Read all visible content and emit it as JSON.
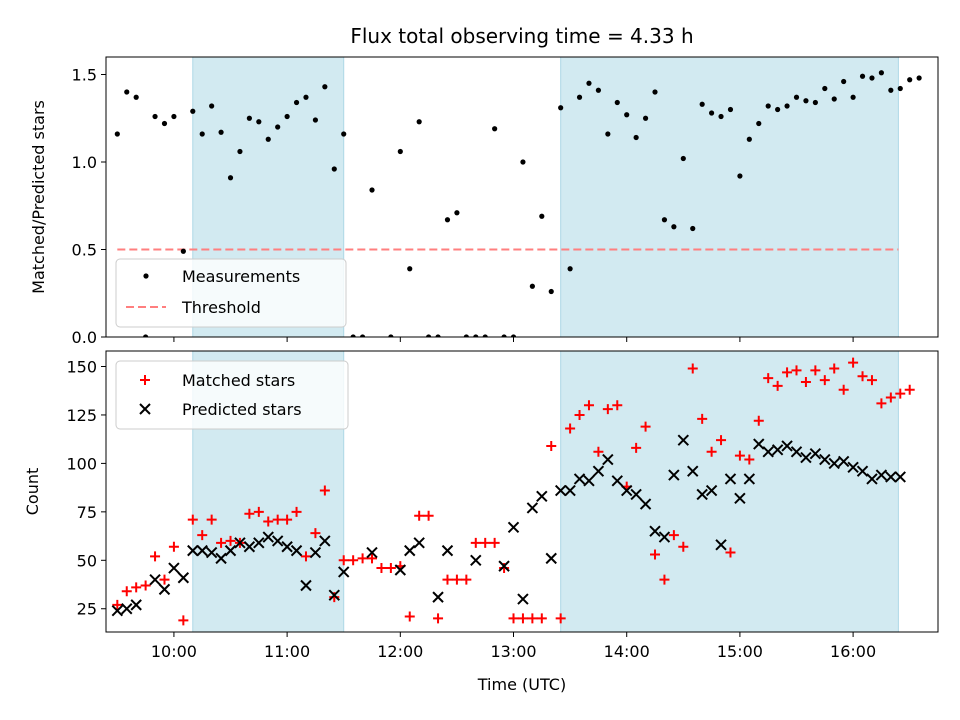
{
  "title": "Flux total observing time = 4.33 h",
  "xlabel": "Time (UTC)",
  "colors": {
    "measurement": "#000000",
    "threshold": "#ff7f7f",
    "band": "#add8e6",
    "matched": "#ff0000",
    "predicted": "#000000"
  },
  "chart_data": [
    {
      "type": "scatter",
      "ylabel": "Matched/Predicted stars",
      "xlim": [
        "09:24",
        "16:45"
      ],
      "ylim": [
        0,
        1.6
      ],
      "yticks": [
        0.0,
        0.5,
        1.0,
        1.5
      ],
      "ytick_labels": [
        "0.0",
        "0.5",
        "1.0",
        "1.5"
      ],
      "xticks": [
        "10:00",
        "11:00",
        "12:00",
        "13:00",
        "14:00",
        "15:00",
        "16:00"
      ],
      "legend_position": "lower-left",
      "legend": [
        "Measurements",
        "Threshold"
      ],
      "threshold": 0.5,
      "threshold_range": [
        "09:30",
        "16:24"
      ],
      "observing_bands": [
        [
          "10:10",
          "11:30"
        ],
        [
          "13:25",
          "16:24"
        ]
      ],
      "series": [
        {
          "name": "Measurements",
          "marker": "dot",
          "points": [
            [
              "09:30",
              1.16
            ],
            [
              "09:35",
              1.4
            ],
            [
              "09:40",
              1.37
            ],
            [
              "09:45",
              0.0
            ],
            [
              "09:50",
              1.26
            ],
            [
              "09:55",
              1.22
            ],
            [
              "10:00",
              1.26
            ],
            [
              "10:05",
              0.49
            ],
            [
              "10:10",
              1.29
            ],
            [
              "10:15",
              1.16
            ],
            [
              "10:20",
              1.32
            ],
            [
              "10:25",
              1.17
            ],
            [
              "10:30",
              0.91
            ],
            [
              "10:35",
              1.06
            ],
            [
              "10:40",
              1.25
            ],
            [
              "10:45",
              1.23
            ],
            [
              "10:50",
              1.13
            ],
            [
              "10:55",
              1.2
            ],
            [
              "11:00",
              1.26
            ],
            [
              "11:05",
              1.34
            ],
            [
              "11:10",
              1.37
            ],
            [
              "11:15",
              1.24
            ],
            [
              "11:20",
              1.43
            ],
            [
              "11:25",
              0.96
            ],
            [
              "11:30",
              1.16
            ],
            [
              "11:35",
              0.0
            ],
            [
              "11:40",
              0.0
            ],
            [
              "11:45",
              0.84
            ],
            [
              "11:55",
              0.0
            ],
            [
              "12:00",
              1.06
            ],
            [
              "12:05",
              0.39
            ],
            [
              "12:10",
              1.23
            ],
            [
              "12:15",
              0.0
            ],
            [
              "12:20",
              0.0
            ],
            [
              "12:25",
              0.67
            ],
            [
              "12:30",
              0.71
            ],
            [
              "12:35",
              0.0
            ],
            [
              "12:40",
              0.0
            ],
            [
              "12:45",
              0.0
            ],
            [
              "12:50",
              1.19
            ],
            [
              "12:55",
              0.0
            ],
            [
              "13:00",
              0.0
            ],
            [
              "13:05",
              1.0
            ],
            [
              "13:10",
              0.29
            ],
            [
              "13:15",
              0.69
            ],
            [
              "13:20",
              0.26
            ],
            [
              "13:25",
              1.31
            ],
            [
              "13:30",
              0.39
            ],
            [
              "13:35",
              1.37
            ],
            [
              "13:40",
              1.45
            ],
            [
              "13:45",
              1.41
            ],
            [
              "13:50",
              1.16
            ],
            [
              "13:55",
              1.34
            ],
            [
              "14:00",
              1.27
            ],
            [
              "14:05",
              1.14
            ],
            [
              "14:10",
              1.25
            ],
            [
              "14:15",
              1.4
            ],
            [
              "14:20",
              0.67
            ],
            [
              "14:25",
              0.63
            ],
            [
              "14:30",
              1.02
            ],
            [
              "14:35",
              0.62
            ],
            [
              "14:40",
              1.33
            ],
            [
              "14:45",
              1.28
            ],
            [
              "14:50",
              1.26
            ],
            [
              "14:55",
              1.3
            ],
            [
              "15:00",
              0.92
            ],
            [
              "15:05",
              1.13
            ],
            [
              "15:10",
              1.22
            ],
            [
              "15:15",
              1.32
            ],
            [
              "15:20",
              1.3
            ],
            [
              "15:25",
              1.32
            ],
            [
              "15:30",
              1.37
            ],
            [
              "15:35",
              1.35
            ],
            [
              "15:40",
              1.34
            ],
            [
              "15:45",
              1.42
            ],
            [
              "15:50",
              1.36
            ],
            [
              "15:55",
              1.46
            ],
            [
              "16:00",
              1.37
            ],
            [
              "16:05",
              1.49
            ],
            [
              "16:10",
              1.48
            ],
            [
              "16:15",
              1.51
            ],
            [
              "16:20",
              1.41
            ],
            [
              "16:25",
              1.42
            ],
            [
              "16:30",
              1.47
            ],
            [
              "16:35",
              1.48
            ]
          ]
        }
      ]
    },
    {
      "type": "scatter",
      "ylabel": "Count",
      "xlim": [
        "09:24",
        "16:45"
      ],
      "ylim": [
        13,
        158
      ],
      "yticks": [
        25,
        50,
        75,
        100,
        125,
        150
      ],
      "ytick_labels": [
        "25",
        "50",
        "75",
        "100",
        "125",
        "150"
      ],
      "xticks": [
        "10:00",
        "11:00",
        "12:00",
        "13:00",
        "14:00",
        "15:00",
        "16:00"
      ],
      "xtick_labels": [
        "10:00",
        "11:00",
        "12:00",
        "13:00",
        "14:00",
        "15:00",
        "16:00"
      ],
      "legend_position": "upper-left",
      "legend": [
        "Matched stars",
        "Predicted stars"
      ],
      "observing_bands": [
        [
          "10:10",
          "11:30"
        ],
        [
          "13:25",
          "16:24"
        ]
      ],
      "series": [
        {
          "name": "Matched stars",
          "marker": "plus",
          "points": [
            [
              "09:30",
              27
            ],
            [
              "09:35",
              34
            ],
            [
              "09:40",
              36
            ],
            [
              "09:45",
              37
            ],
            [
              "09:50",
              52
            ],
            [
              "09:55",
              40
            ],
            [
              "10:00",
              57
            ],
            [
              "10:05",
              19
            ],
            [
              "10:10",
              71
            ],
            [
              "10:15",
              63
            ],
            [
              "10:20",
              71
            ],
            [
              "10:25",
              59
            ],
            [
              "10:30",
              60
            ],
            [
              "10:35",
              59
            ],
            [
              "10:40",
              74
            ],
            [
              "10:45",
              75
            ],
            [
              "10:50",
              70
            ],
            [
              "10:55",
              71
            ],
            [
              "11:00",
              71
            ],
            [
              "11:05",
              75
            ],
            [
              "11:10",
              52
            ],
            [
              "11:15",
              64
            ],
            [
              "11:20",
              86
            ],
            [
              "11:25",
              31
            ],
            [
              "11:30",
              50
            ],
            [
              "11:35",
              50
            ],
            [
              "11:40",
              51
            ],
            [
              "11:45",
              51
            ],
            [
              "11:50",
              46
            ],
            [
              "11:55",
              46
            ],
            [
              "12:00",
              47
            ],
            [
              "12:05",
              21
            ],
            [
              "12:10",
              73
            ],
            [
              "12:15",
              73
            ],
            [
              "12:20",
              20
            ],
            [
              "12:25",
              40
            ],
            [
              "12:30",
              40
            ],
            [
              "12:35",
              40
            ],
            [
              "12:40",
              59
            ],
            [
              "12:45",
              59
            ],
            [
              "12:50",
              59
            ],
            [
              "12:55",
              46
            ],
            [
              "13:00",
              20
            ],
            [
              "13:05",
              20
            ],
            [
              "13:10",
              20
            ],
            [
              "13:15",
              20
            ],
            [
              "13:20",
              109
            ],
            [
              "13:25",
              20
            ],
            [
              "13:30",
              118
            ],
            [
              "13:35",
              125
            ],
            [
              "13:40",
              130
            ],
            [
              "13:45",
              106
            ],
            [
              "13:50",
              128
            ],
            [
              "13:55",
              130
            ],
            [
              "14:00",
              88
            ],
            [
              "14:05",
              108
            ],
            [
              "14:10",
              119
            ],
            [
              "14:15",
              53
            ],
            [
              "14:20",
              40
            ],
            [
              "14:25",
              63
            ],
            [
              "14:30",
              57
            ],
            [
              "14:35",
              149
            ],
            [
              "14:40",
              123
            ],
            [
              "14:45",
              106
            ],
            [
              "14:50",
              112
            ],
            [
              "14:55",
              54
            ],
            [
              "15:00",
              104
            ],
            [
              "15:05",
              102
            ],
            [
              "15:10",
              122
            ],
            [
              "15:15",
              144
            ],
            [
              "15:20",
              140
            ],
            [
              "15:25",
              147
            ],
            [
              "15:30",
              148
            ],
            [
              "15:35",
              142
            ],
            [
              "15:40",
              148
            ],
            [
              "15:45",
              143
            ],
            [
              "15:50",
              149
            ],
            [
              "15:55",
              138
            ],
            [
              "16:00",
              152
            ],
            [
              "16:05",
              145
            ],
            [
              "16:10",
              143
            ],
            [
              "16:15",
              131
            ],
            [
              "16:20",
              134
            ],
            [
              "16:25",
              136
            ],
            [
              "16:30",
              138
            ]
          ]
        },
        {
          "name": "Predicted stars",
          "marker": "x",
          "points": [
            [
              "09:30",
              24
            ],
            [
              "09:35",
              25
            ],
            [
              "09:40",
              27
            ],
            [
              "09:50",
              40
            ],
            [
              "09:55",
              35
            ],
            [
              "10:00",
              46
            ],
            [
              "10:05",
              41
            ],
            [
              "10:10",
              55
            ],
            [
              "10:15",
              55
            ],
            [
              "10:20",
              54
            ],
            [
              "10:25",
              51
            ],
            [
              "10:30",
              55
            ],
            [
              "10:35",
              59
            ],
            [
              "10:40",
              57
            ],
            [
              "10:45",
              59
            ],
            [
              "10:50",
              62
            ],
            [
              "10:55",
              60
            ],
            [
              "11:00",
              57
            ],
            [
              "11:05",
              55
            ],
            [
              "11:10",
              37
            ],
            [
              "11:15",
              54
            ],
            [
              "11:20",
              60
            ],
            [
              "11:25",
              32
            ],
            [
              "11:30",
              44
            ],
            [
              "11:45",
              54
            ],
            [
              "12:00",
              45
            ],
            [
              "12:05",
              55
            ],
            [
              "12:10",
              59
            ],
            [
              "12:20",
              31
            ],
            [
              "12:25",
              55
            ],
            [
              "12:40",
              50
            ],
            [
              "12:55",
              47
            ],
            [
              "13:00",
              67
            ],
            [
              "13:05",
              30
            ],
            [
              "13:10",
              77
            ],
            [
              "13:15",
              83
            ],
            [
              "13:20",
              51
            ],
            [
              "13:25",
              86
            ],
            [
              "13:30",
              86
            ],
            [
              "13:35",
              92
            ],
            [
              "13:40",
              91
            ],
            [
              "13:45",
              96
            ],
            [
              "13:50",
              102
            ],
            [
              "13:55",
              91
            ],
            [
              "14:00",
              86
            ],
            [
              "14:05",
              84
            ],
            [
              "14:10",
              79
            ],
            [
              "14:15",
              65
            ],
            [
              "14:20",
              62
            ],
            [
              "14:25",
              94
            ],
            [
              "14:30",
              112
            ],
            [
              "14:35",
              96
            ],
            [
              "14:40",
              84
            ],
            [
              "14:45",
              86
            ],
            [
              "14:50",
              58
            ],
            [
              "14:55",
              92
            ],
            [
              "15:00",
              82
            ],
            [
              "15:05",
              92
            ],
            [
              "15:10",
              110
            ],
            [
              "15:15",
              106
            ],
            [
              "15:20",
              107
            ],
            [
              "15:25",
              109
            ],
            [
              "15:30",
              106
            ],
            [
              "15:35",
              103
            ],
            [
              "15:40",
              105
            ],
            [
              "15:45",
              102
            ],
            [
              "15:50",
              100
            ],
            [
              "15:55",
              101
            ],
            [
              "16:00",
              98
            ],
            [
              "16:05",
              96
            ],
            [
              "16:10",
              92
            ],
            [
              "16:15",
              94
            ],
            [
              "16:20",
              93
            ],
            [
              "16:25",
              93
            ]
          ]
        }
      ]
    }
  ]
}
